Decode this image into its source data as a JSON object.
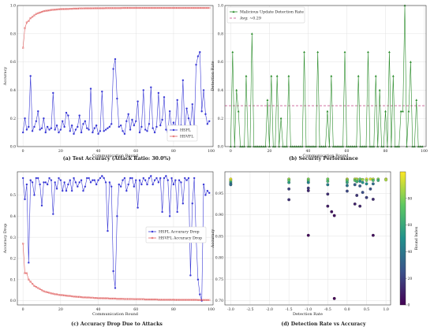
{
  "chart_data": [
    {
      "type": "line",
      "caption": "(a) Test Accuracy (Attack Ratio: 30.0%)",
      "xlabel": "Communication Round",
      "ylabel": "Accuracy",
      "xlim": [
        -3,
        101
      ],
      "ylim": [
        0,
        1.0
      ],
      "xticks": [
        0,
        20,
        40,
        60,
        80,
        100
      ],
      "yticks": [
        0.0,
        0.2,
        0.4,
        0.6,
        0.8,
        1.0
      ],
      "ytick_labels": [
        "0.0",
        "0.2",
        "0.4",
        "0.6",
        "0.8",
        "1.0"
      ],
      "grid": true,
      "legend_position": "lower-right",
      "series": [
        {
          "name": "HSFL",
          "color": "#3a3ad6",
          "marker": "circle",
          "values": [
            0.1,
            0.2,
            0.12,
            0.14,
            0.5,
            0.11,
            0.14,
            0.18,
            0.25,
            0.12,
            0.13,
            0.2,
            0.1,
            0.14,
            0.12,
            0.13,
            0.38,
            0.12,
            0.15,
            0.1,
            0.12,
            0.18,
            0.14,
            0.24,
            0.22,
            0.11,
            0.15,
            0.09,
            0.12,
            0.14,
            0.22,
            0.1,
            0.16,
            0.18,
            0.13,
            0.12,
            0.41,
            0.1,
            0.13,
            0.15,
            0.09,
            0.11,
            0.39,
            0.11,
            0.12,
            0.13,
            0.14,
            0.16,
            0.55,
            0.62,
            0.34,
            0.14,
            0.15,
            0.11,
            0.09,
            0.18,
            0.23,
            0.12,
            0.19,
            0.15,
            0.18,
            0.32,
            0.1,
            0.14,
            0.4,
            0.12,
            0.11,
            0.16,
            0.42,
            0.13,
            0.1,
            0.14,
            0.38,
            0.15,
            0.19,
            0.35,
            0.12,
            0.1,
            0.25,
            0.13,
            0.17,
            0.14,
            0.33,
            0.11,
            0.15,
            0.47,
            0.12,
            0.27,
            0.2,
            0.15,
            0.3,
            0.12,
            0.58,
            0.64,
            0.67,
            0.25,
            0.4,
            0.23,
            0.16,
            0.18
          ]
        },
        {
          "name": "HSVFL",
          "color": "#e06060",
          "marker": "square",
          "values": [
            0.7,
            0.84,
            0.88,
            0.89,
            0.91,
            0.92,
            0.93,
            0.94,
            0.945,
            0.95,
            0.955,
            0.96,
            0.962,
            0.964,
            0.966,
            0.968,
            0.97,
            0.971,
            0.972,
            0.973,
            0.974,
            0.975,
            0.975,
            0.976,
            0.976,
            0.977,
            0.977,
            0.978,
            0.978,
            0.978,
            0.979,
            0.979,
            0.979,
            0.98,
            0.98,
            0.98,
            0.98,
            0.98,
            0.981,
            0.981,
            0.981,
            0.981,
            0.981,
            0.981,
            0.982,
            0.982,
            0.982,
            0.982,
            0.982,
            0.982,
            0.982,
            0.982,
            0.982,
            0.983,
            0.983,
            0.983,
            0.983,
            0.983,
            0.983,
            0.983,
            0.983,
            0.983,
            0.983,
            0.983,
            0.983,
            0.983,
            0.983,
            0.983,
            0.983,
            0.983,
            0.983,
            0.983,
            0.983,
            0.983,
            0.983,
            0.983,
            0.983,
            0.983,
            0.983,
            0.983,
            0.983,
            0.983,
            0.983,
            0.983,
            0.983,
            0.983,
            0.983,
            0.983,
            0.983,
            0.983,
            0.983,
            0.983,
            0.983,
            0.983,
            0.983,
            0.983,
            0.983,
            0.983,
            0.983,
            0.983
          ]
        }
      ]
    },
    {
      "type": "line",
      "caption": "(b) Security Performance",
      "xlabel": "Communication Round",
      "ylabel": "Detection Rate",
      "xlim": [
        -3,
        101
      ],
      "ylim": [
        0,
        1.0
      ],
      "xticks": [
        0,
        20,
        40,
        60,
        80,
        100
      ],
      "yticks": [
        0.0,
        0.2,
        0.4,
        0.6,
        0.8,
        1.0
      ],
      "ytick_labels": [
        "0.0",
        "0.2",
        "0.4",
        "0.6",
        "0.8",
        "1.0"
      ],
      "grid": true,
      "legend_position": "top-left",
      "series": [
        {
          "name": "Malicious Update Detection Rate",
          "color": "#2a8c2a",
          "marker": "triangle",
          "values": [
            0,
            0.67,
            0,
            0.4,
            0.25,
            0,
            0,
            0,
            0.5,
            0,
            0,
            0.8,
            0,
            0,
            0,
            0,
            0,
            0,
            0,
            0.33,
            0,
            0.5,
            0,
            0,
            0.5,
            0,
            0.2,
            0,
            0,
            0,
            0.5,
            0,
            0,
            0,
            0,
            0,
            0,
            0,
            0.67,
            0,
            0,
            0,
            0,
            0,
            0,
            0.67,
            0,
            0,
            0,
            0,
            0.25,
            0,
            0.5,
            0,
            0,
            0,
            0,
            0,
            0,
            0.67,
            0,
            0,
            0,
            0,
            0,
            0,
            0.5,
            0,
            0,
            0,
            0,
            0.67,
            0,
            0,
            0,
            0.5,
            0,
            0.4,
            0,
            0,
            0.25,
            0,
            0.67,
            0,
            0.5,
            0,
            0,
            0,
            0.25,
            0.25,
            1.0,
            0,
            0.25,
            0.6,
            0,
            0,
            0.33,
            0,
            0,
            0
          ]
        }
      ],
      "reference_line": {
        "name": "Avg: ~0.29",
        "value": 0.29,
        "color": "#c04080",
        "style": "dashed"
      }
    },
    {
      "type": "line",
      "caption": "(c) Accuracy Drop Due to Attacks",
      "xlabel": "Communication Round",
      "ylabel": "Accuracy Drop",
      "xlim": [
        -3,
        101
      ],
      "ylim": [
        -0.02,
        0.61
      ],
      "xticks": [
        0,
        20,
        40,
        60,
        80,
        100
      ],
      "yticks": [
        0.0,
        0.1,
        0.2,
        0.3,
        0.4,
        0.5
      ],
      "ytick_labels": [
        "0.0",
        "0.1",
        "0.2",
        "0.3",
        "0.4",
        "0.5"
      ],
      "grid": true,
      "legend_position": "center-right",
      "series": [
        {
          "name": "HSFL Accuracy Drop",
          "color": "#3a3ad6",
          "marker": "circle",
          "values": [
            0.58,
            0.48,
            0.55,
            0.18,
            0.57,
            0.56,
            0.5,
            0.58,
            0.58,
            0.55,
            0.45,
            0.56,
            0.56,
            0.55,
            0.58,
            0.57,
            0.41,
            0.56,
            0.53,
            0.58,
            0.57,
            0.52,
            0.56,
            0.52,
            0.55,
            0.57,
            0.52,
            0.58,
            0.56,
            0.54,
            0.56,
            0.57,
            0.52,
            0.54,
            0.58,
            0.58,
            0.56,
            0.57,
            0.57,
            0.55,
            0.57,
            0.58,
            0.59,
            0.58,
            0.56,
            0.33,
            0.56,
            0.54,
            0.14,
            0.06,
            0.4,
            0.55,
            0.54,
            0.57,
            0.58,
            0.52,
            0.55,
            0.58,
            0.58,
            0.54,
            0.57,
            0.44,
            0.57,
            0.55,
            0.58,
            0.57,
            0.55,
            0.58,
            0.59,
            0.55,
            0.57,
            0.58,
            0.56,
            0.58,
            0.42,
            0.58,
            0.59,
            0.57,
            0.4,
            0.58,
            0.55,
            0.57,
            0.42,
            0.57,
            0.56,
            0.46,
            0.58,
            0.57,
            0.58,
            0.12,
            0.46,
            0.58,
            0.3,
            0.1,
            0.03,
            0.0,
            0.55,
            0.5,
            0.52,
            0.51
          ]
        },
        {
          "name": "HSVFL Accuracy Drop",
          "color": "#e06060",
          "marker": "square",
          "values": [
            0.27,
            0.13,
            0.13,
            0.1,
            0.09,
            0.08,
            0.07,
            0.065,
            0.06,
            0.055,
            0.05,
            0.045,
            0.042,
            0.04,
            0.037,
            0.035,
            0.033,
            0.031,
            0.03,
            0.028,
            0.027,
            0.026,
            0.025,
            0.024,
            0.023,
            0.022,
            0.021,
            0.02,
            0.019,
            0.018,
            0.018,
            0.017,
            0.016,
            0.016,
            0.015,
            0.015,
            0.014,
            0.014,
            0.013,
            0.013,
            0.012,
            0.012,
            0.012,
            0.011,
            0.011,
            0.011,
            0.01,
            0.01,
            0.01,
            0.01,
            0.009,
            0.009,
            0.009,
            0.009,
            0.008,
            0.008,
            0.008,
            0.008,
            0.008,
            0.007,
            0.007,
            0.007,
            0.007,
            0.007,
            0.007,
            0.006,
            0.006,
            0.006,
            0.006,
            0.006,
            0.006,
            0.006,
            0.005,
            0.005,
            0.005,
            0.005,
            0.005,
            0.005,
            0.005,
            0.005,
            0.005,
            0.004,
            0.004,
            0.004,
            0.004,
            0.004,
            0.004,
            0.004,
            0.004,
            0.004,
            0.004,
            0.004,
            0.004,
            0.003,
            0.003,
            0.003,
            0.003,
            0.003,
            0.003,
            0.003
          ]
        }
      ]
    },
    {
      "type": "scatter",
      "caption": "(d) Detection Rate vs Accuracy",
      "xlabel": "Detection Rate",
      "ylabel": "Accuracy",
      "xlim": [
        -3.15,
        1.12
      ],
      "ylim": [
        0.69,
        1.0
      ],
      "xticks": [
        -3.0,
        -2.5,
        -2.0,
        -1.5,
        -1.0,
        -0.5,
        0.0,
        0.5,
        1.0
      ],
      "xtick_labels": [
        "-3.0",
        "-2.5",
        "-2.0",
        "-1.5",
        "-1.0",
        "-0.5",
        "0.0",
        "0.5",
        "1.0"
      ],
      "yticks": [
        0.7,
        0.75,
        0.8,
        0.85,
        0.9,
        0.95
      ],
      "ytick_labels": [
        "0.70",
        "0.75",
        "0.80",
        "0.85",
        "0.90",
        "0.95"
      ],
      "grid": true,
      "colorbar": {
        "label": "Round Index",
        "min": 0,
        "max": 100,
        "ticks": [
          0,
          20,
          40,
          60,
          80
        ],
        "colormap": "viridis"
      },
      "points": [
        {
          "x": -3.0,
          "y": 0.983,
          "c": 98
        },
        {
          "x": -3.0,
          "y": 0.98,
          "c": 90
        },
        {
          "x": -3.0,
          "y": 0.976,
          "c": 60
        },
        {
          "x": -3.0,
          "y": 0.972,
          "c": 40
        },
        {
          "x": -3.0,
          "y": 0.97,
          "c": 35
        },
        {
          "x": -1.5,
          "y": 0.983,
          "c": 85
        },
        {
          "x": -1.5,
          "y": 0.98,
          "c": 75
        },
        {
          "x": -1.5,
          "y": 0.975,
          "c": 55
        },
        {
          "x": -1.5,
          "y": 0.96,
          "c": 20
        },
        {
          "x": -1.5,
          "y": 0.935,
          "c": 15
        },
        {
          "x": -1.0,
          "y": 0.983,
          "c": 80
        },
        {
          "x": -1.0,
          "y": 0.979,
          "c": 70
        },
        {
          "x": -1.0,
          "y": 0.975,
          "c": 45
        },
        {
          "x": -1.0,
          "y": 0.962,
          "c": 18
        },
        {
          "x": -1.0,
          "y": 0.956,
          "c": 12
        },
        {
          "x": -1.0,
          "y": 0.852,
          "c": 3
        },
        {
          "x": -0.5,
          "y": 0.983,
          "c": 78
        },
        {
          "x": -0.5,
          "y": 0.978,
          "c": 66
        },
        {
          "x": -0.5,
          "y": 0.97,
          "c": 42
        },
        {
          "x": -0.5,
          "y": 0.948,
          "c": 14
        },
        {
          "x": -0.5,
          "y": 0.92,
          "c": 8
        },
        {
          "x": -0.4,
          "y": 0.907,
          "c": 6
        },
        {
          "x": -0.33,
          "y": 0.898,
          "c": 5
        },
        {
          "x": -0.33,
          "y": 0.705,
          "c": 1
        },
        {
          "x": 0.0,
          "y": 0.983,
          "c": 92
        },
        {
          "x": 0.0,
          "y": 0.981,
          "c": 86
        },
        {
          "x": 0.0,
          "y": 0.979,
          "c": 74
        },
        {
          "x": 0.0,
          "y": 0.975,
          "c": 58
        },
        {
          "x": 0.0,
          "y": 0.968,
          "c": 38
        },
        {
          "x": 0.0,
          "y": 0.955,
          "c": 22
        },
        {
          "x": 0.2,
          "y": 0.983,
          "c": 88
        },
        {
          "x": 0.2,
          "y": 0.98,
          "c": 72
        },
        {
          "x": 0.2,
          "y": 0.97,
          "c": 30
        },
        {
          "x": 0.2,
          "y": 0.925,
          "c": 10
        },
        {
          "x": 0.25,
          "y": 0.983,
          "c": 95
        },
        {
          "x": 0.25,
          "y": 0.981,
          "c": 82
        },
        {
          "x": 0.25,
          "y": 0.977,
          "c": 64
        },
        {
          "x": 0.25,
          "y": 0.945,
          "c": 16
        },
        {
          "x": 0.33,
          "y": 0.983,
          "c": 76
        },
        {
          "x": 0.33,
          "y": 0.978,
          "c": 50
        },
        {
          "x": 0.33,
          "y": 0.967,
          "c": 28
        },
        {
          "x": 0.33,
          "y": 0.92,
          "c": 11
        },
        {
          "x": 0.4,
          "y": 0.982,
          "c": 84
        },
        {
          "x": 0.4,
          "y": 0.975,
          "c": 52
        },
        {
          "x": 0.4,
          "y": 0.952,
          "c": 24
        },
        {
          "x": 0.5,
          "y": 0.983,
          "c": 97
        },
        {
          "x": 0.5,
          "y": 0.98,
          "c": 79
        },
        {
          "x": 0.5,
          "y": 0.972,
          "c": 48
        },
        {
          "x": 0.5,
          "y": 0.94,
          "c": 19
        },
        {
          "x": 0.6,
          "y": 0.983,
          "c": 93
        },
        {
          "x": 0.6,
          "y": 0.96,
          "c": 26
        },
        {
          "x": 0.67,
          "y": 0.983,
          "c": 89
        },
        {
          "x": 0.67,
          "y": 0.98,
          "c": 68
        },
        {
          "x": 0.67,
          "y": 0.972,
          "c": 36
        },
        {
          "x": 0.67,
          "y": 0.936,
          "c": 13
        },
        {
          "x": 0.67,
          "y": 0.852,
          "c": 4
        },
        {
          "x": 0.8,
          "y": 0.983,
          "c": 81
        },
        {
          "x": 0.8,
          "y": 0.98,
          "c": 62
        },
        {
          "x": 1.0,
          "y": 0.983,
          "c": 91
        },
        {
          "x": 1.0,
          "y": 0.981,
          "c": 87
        }
      ]
    }
  ]
}
